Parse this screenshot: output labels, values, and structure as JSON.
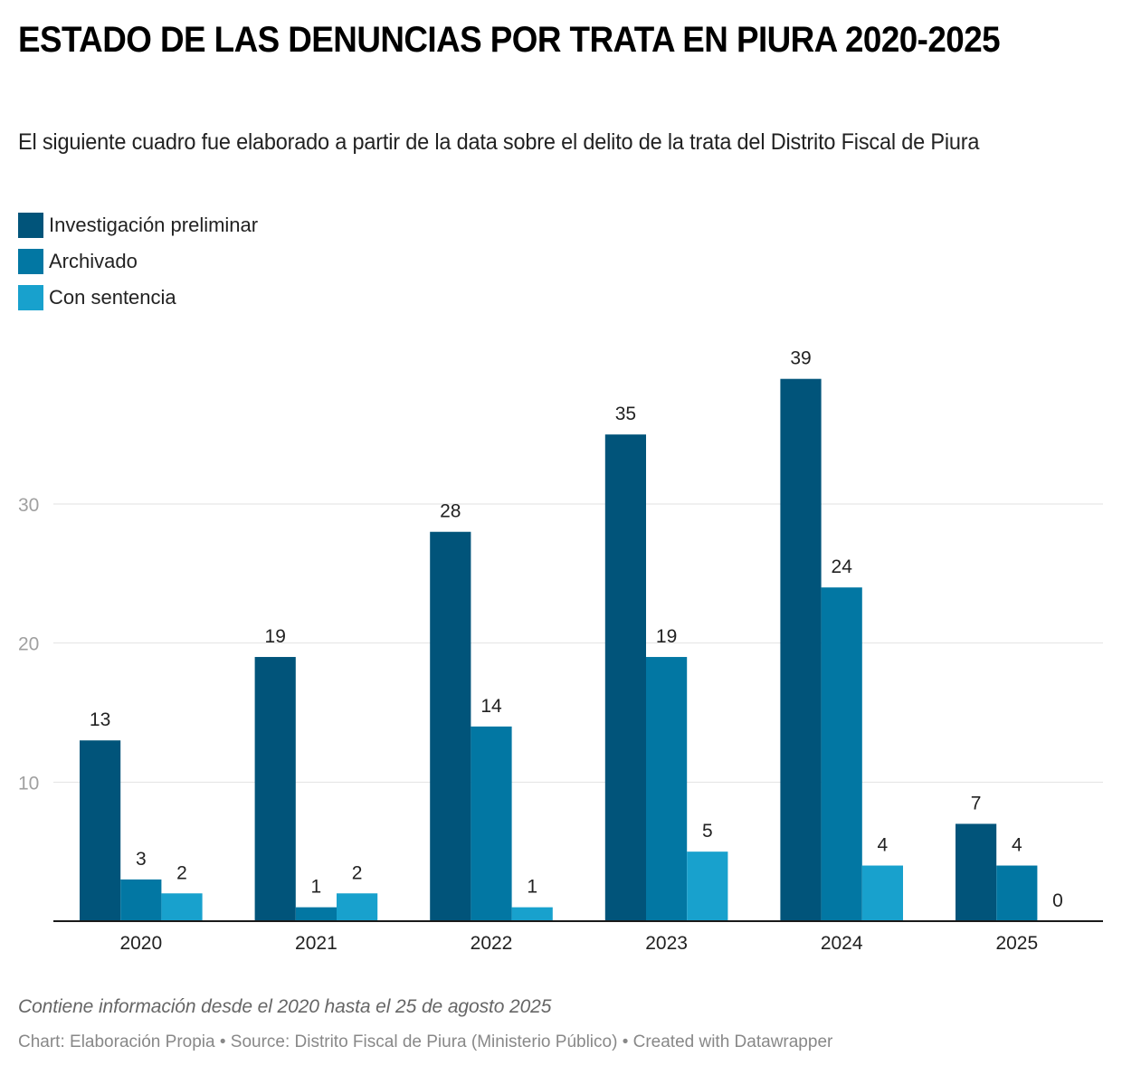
{
  "header": {
    "title": "ESTADO DE LAS DENUNCIAS POR TRATA EN PIURA 2020-2025",
    "subtitle": "El siguiente cuadro fue elaborado a partir de la data sobre el delito de la trata del Distrito Fiscal de Piura"
  },
  "footer": {
    "notes": "Contiene información desde el 2020 hasta el 25 de agosto 2025",
    "byline": "Chart: Elaboración Propia • Source: Distrito Fiscal de Piura (Ministerio Público) • Created with Datawrapper"
  },
  "chart_data": {
    "type": "bar",
    "title": "ESTADO DE LAS DENUNCIAS POR TRATA EN PIURA 2020-2025",
    "subtitle": "El siguiente cuadro fue elaborado a partir de la data sobre el delito de la trata del Distrito Fiscal de Piura",
    "xlabel": "",
    "ylabel": "",
    "categories": [
      "2020",
      "2021",
      "2022",
      "2023",
      "2024",
      "2025"
    ],
    "series": [
      {
        "name": "Investigación preliminar",
        "color": "#01547a",
        "values": [
          13,
          19,
          28,
          35,
          39,
          7
        ]
      },
      {
        "name": "Archivado",
        "color": "#0277a3",
        "values": [
          3,
          1,
          14,
          19,
          24,
          4
        ]
      },
      {
        "name": "Con sentencia",
        "color": "#18a1cd",
        "values": [
          2,
          2,
          1,
          5,
          4,
          0
        ]
      }
    ],
    "yticks": [
      10,
      20,
      30
    ],
    "ylim": [
      0,
      39
    ],
    "grid": true,
    "legend_position": "top-left",
    "data_labels": true
  }
}
